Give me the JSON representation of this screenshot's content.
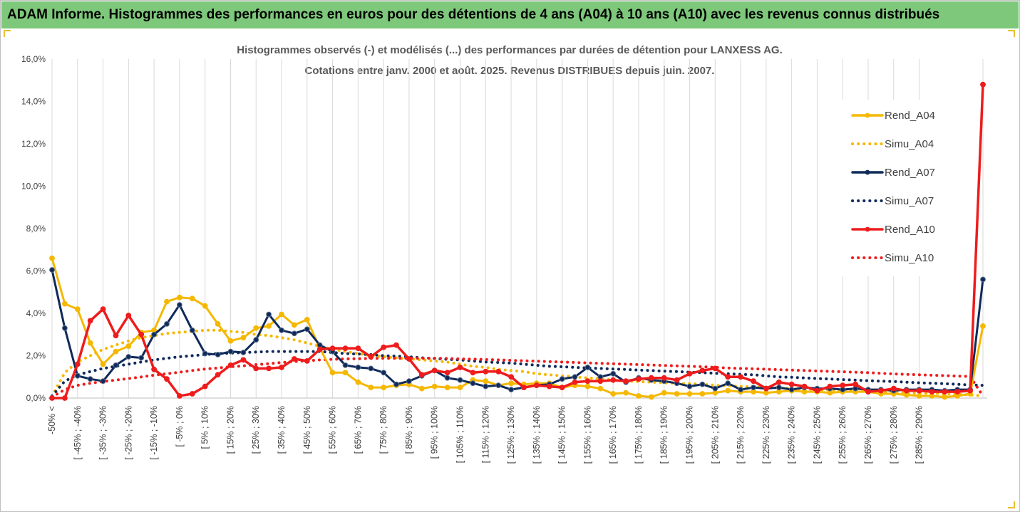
{
  "header": {
    "title": "ADAM Informe. Histogrammes des performances en euros pour des détentions de 4 ans (A04) à 10 ans (A10) avec les revenus connus distribués"
  },
  "chart_data": {
    "type": "line",
    "title": "Histogrammes observés (-) et modélisés (...) des performances par durées de détention pour LANXESS AG.",
    "subtitle": "Cotations entre janv. 2000 et août. 2025. Revenus DISTRIBUES depuis juin. 2007.",
    "xlabel": "",
    "ylabel": "",
    "ylim": [
      0,
      16
    ],
    "y_unit": "%",
    "y_ticks": [
      "0,0%",
      "2,0%",
      "4,0%",
      "6,0%",
      "8,0%",
      "10,0%",
      "12,0%",
      "14,0%",
      "16,0%"
    ],
    "grid": "vertical",
    "legend_position": "right",
    "x_tick_labels": [
      "-50% <",
      "[ -45% ; -40%",
      "[ -35% ; -30%",
      "[ -25% ; -20%",
      "[ -15% ; -10%",
      "[ -5% ; 0%",
      "[ 5% ; 10%",
      "[ 15% ; 20%",
      "[ 25% ; 30%",
      "[ 35% ; 40%",
      "[ 45% ; 50%",
      "[ 55% ; 60%",
      "[ 65% ; 70%",
      "[ 75% ; 80%",
      "[ 85% ; 90%",
      "[ 95% ; 100%",
      "[ 105% ; 110%",
      "[ 115% ; 120%",
      "[ 125% ; 130%",
      "[ 135% ; 140%",
      "[ 145% ; 150%",
      "[ 155% ; 160%",
      "[ 165% ; 170%",
      "[ 175% ; 180%",
      "[ 185% ; 190%",
      "[ 195% ; 200%",
      "[ 205% ; 210%",
      "[ 215% ; 220%",
      "[ 225% ; 230%",
      "[ 235% ; 240%",
      "[ 245% ; 250%",
      "[ 255% ; 260%",
      "[ 265% ; 270%",
      "[ 275% ; 280%",
      "[ 285% ; 290%"
    ],
    "series": [
      {
        "name": "Rend_A04",
        "style": "solid",
        "markers": true,
        "color": "#f5b800",
        "values": [
          6.6,
          4.45,
          4.2,
          2.6,
          1.6,
          2.2,
          2.45,
          3.1,
          3.2,
          4.55,
          4.75,
          4.7,
          4.35,
          3.5,
          2.7,
          2.85,
          3.3,
          3.4,
          3.95,
          3.45,
          3.7,
          2.35,
          1.2,
          1.2,
          0.75,
          0.5,
          0.5,
          0.6,
          0.65,
          0.45,
          0.55,
          0.5,
          0.5,
          0.85,
          0.8,
          0.6,
          0.7,
          0.65,
          0.7,
          0.7,
          0.5,
          0.6,
          0.55,
          0.45,
          0.2,
          0.25,
          0.1,
          0.05,
          0.25,
          0.2,
          0.2,
          0.2,
          0.25,
          0.35,
          0.3,
          0.3,
          0.25,
          0.3,
          0.35,
          0.3,
          0.3,
          0.25,
          0.3,
          0.3,
          0.3,
          0.2,
          0.2,
          0.15,
          0.1,
          0.1,
          0.05,
          0.1,
          0.2,
          3.4
        ]
      },
      {
        "name": "Simu_A04",
        "style": "dotted",
        "markers": false,
        "color": "#f5b800",
        "values": [
          0.1,
          1.2,
          1.7,
          2.0,
          2.3,
          2.5,
          2.7,
          2.85,
          2.95,
          3.05,
          3.1,
          3.15,
          3.2,
          3.2,
          3.15,
          3.1,
          3.0,
          2.95,
          2.85,
          2.75,
          2.6,
          2.45,
          2.3,
          2.2,
          2.1,
          2.0,
          1.95,
          1.9,
          1.85,
          1.8,
          1.75,
          1.7,
          1.6,
          1.5,
          1.45,
          1.35,
          1.3,
          1.25,
          1.15,
          1.1,
          1.05,
          1.0,
          0.95,
          0.9,
          0.85,
          0.8,
          0.78,
          0.75,
          0.72,
          0.7,
          0.68,
          0.65,
          0.6,
          0.58,
          0.55,
          0.52,
          0.5,
          0.48,
          0.45,
          0.43,
          0.4,
          0.38,
          0.35,
          0.33,
          0.3,
          0.28,
          0.27,
          0.25,
          0.23,
          0.22,
          0.2,
          0.18,
          0.15,
          0.1
        ]
      },
      {
        "name": "Rend_A07",
        "style": "solid",
        "markers": true,
        "color": "#0f2a5a",
        "values": [
          6.05,
          3.3,
          1.05,
          0.9,
          0.8,
          1.55,
          1.95,
          1.9,
          3.0,
          3.5,
          4.4,
          3.2,
          2.1,
          2.05,
          2.2,
          2.15,
          2.75,
          3.95,
          3.2,
          3.05,
          3.25,
          2.5,
          2.2,
          1.55,
          1.45,
          1.4,
          1.2,
          0.65,
          0.8,
          1.05,
          1.3,
          0.95,
          0.85,
          0.7,
          0.55,
          0.6,
          0.4,
          0.5,
          0.6,
          0.65,
          0.9,
          1.0,
          1.45,
          1.0,
          1.15,
          0.75,
          0.95,
          0.85,
          0.8,
          0.7,
          0.55,
          0.65,
          0.45,
          0.7,
          0.4,
          0.5,
          0.45,
          0.5,
          0.4,
          0.5,
          0.45,
          0.45,
          0.4,
          0.45,
          0.4,
          0.4,
          0.35,
          0.4,
          0.4,
          0.4,
          0.35,
          0.4,
          0.4,
          5.6
        ]
      },
      {
        "name": "Simu_A07",
        "style": "dotted",
        "markers": false,
        "color": "#0f2a5a",
        "values": [
          0.1,
          0.8,
          1.1,
          1.25,
          1.4,
          1.5,
          1.6,
          1.7,
          1.8,
          1.88,
          1.95,
          2.0,
          2.05,
          2.1,
          2.12,
          2.15,
          2.17,
          2.2,
          2.2,
          2.2,
          2.2,
          2.2,
          2.15,
          2.1,
          2.08,
          2.05,
          2.0,
          1.98,
          1.95,
          1.9,
          1.87,
          1.83,
          1.8,
          1.75,
          1.7,
          1.68,
          1.65,
          1.6,
          1.55,
          1.5,
          1.48,
          1.45,
          1.42,
          1.4,
          1.37,
          1.35,
          1.32,
          1.3,
          1.27,
          1.25,
          1.22,
          1.2,
          1.17,
          1.15,
          1.12,
          1.1,
          1.05,
          1.0,
          0.98,
          0.95,
          0.92,
          0.9,
          0.87,
          0.85,
          0.82,
          0.8,
          0.78,
          0.75,
          0.72,
          0.7,
          0.68,
          0.65,
          0.62,
          0.6
        ]
      },
      {
        "name": "Rend_A10",
        "style": "solid",
        "markers": true,
        "color": "#ee1c1c",
        "values": [
          0.0,
          0.0,
          1.6,
          3.65,
          4.2,
          2.95,
          3.9,
          3.0,
          1.35,
          0.9,
          0.1,
          0.2,
          0.55,
          1.1,
          1.55,
          1.8,
          1.4,
          1.4,
          1.45,
          1.85,
          1.75,
          2.3,
          2.35,
          2.35,
          2.35,
          1.95,
          2.4,
          2.5,
          1.85,
          1.1,
          1.3,
          1.2,
          1.45,
          1.2,
          1.25,
          1.25,
          1.0,
          0.5,
          0.6,
          0.55,
          0.5,
          0.75,
          0.8,
          0.8,
          0.85,
          0.8,
          0.9,
          0.95,
          0.95,
          0.85,
          1.15,
          1.3,
          1.4,
          1.0,
          1.0,
          0.8,
          0.45,
          0.75,
          0.65,
          0.55,
          0.35,
          0.55,
          0.6,
          0.65,
          0.3,
          0.35,
          0.45,
          0.35,
          0.35,
          0.3,
          0.3,
          0.3,
          0.35,
          14.8
        ]
      },
      {
        "name": "Simu_A10",
        "style": "dotted",
        "markers": false,
        "color": "#ee1c1c",
        "values": [
          0.05,
          0.4,
          0.6,
          0.7,
          0.78,
          0.85,
          0.92,
          1.0,
          1.08,
          1.15,
          1.22,
          1.3,
          1.37,
          1.42,
          1.48,
          1.52,
          1.58,
          1.62,
          1.68,
          1.72,
          1.76,
          1.8,
          1.83,
          1.85,
          1.86,
          1.87,
          1.88,
          1.88,
          1.88,
          1.88,
          1.88,
          1.87,
          1.85,
          1.84,
          1.82,
          1.8,
          1.78,
          1.76,
          1.74,
          1.72,
          1.7,
          1.68,
          1.66,
          1.64,
          1.62,
          1.6,
          1.58,
          1.56,
          1.54,
          1.52,
          1.5,
          1.48,
          1.45,
          1.42,
          1.4,
          1.38,
          1.36,
          1.34,
          1.32,
          1.3,
          1.28,
          1.26,
          1.24,
          1.22,
          1.2,
          1.17,
          1.14,
          1.12,
          1.1,
          1.08,
          1.06,
          1.04,
          1.02,
          0.1
        ]
      }
    ]
  }
}
